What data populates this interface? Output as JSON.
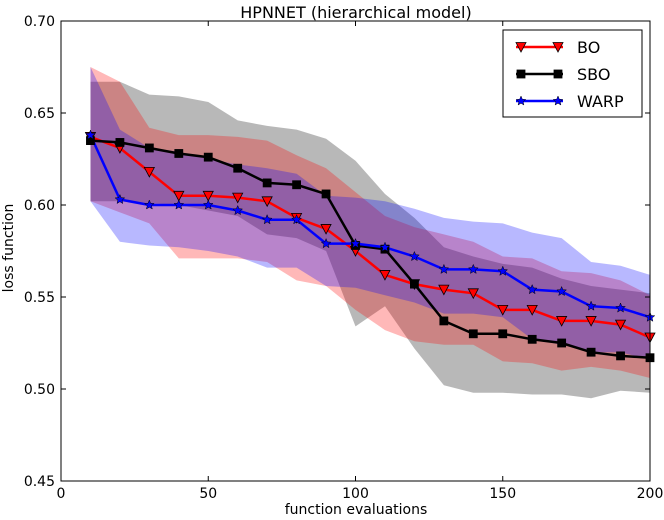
{
  "chart_data": {
    "type": "line",
    "title": "HPNNET (hierarchical model)",
    "xlabel": "function evaluations",
    "ylabel": "loss function",
    "xlim": [
      0,
      200
    ],
    "ylim": [
      0.45,
      0.7
    ],
    "xticks": [
      0,
      50,
      100,
      150,
      200
    ],
    "yticks": [
      0.45,
      0.5,
      0.55,
      0.6,
      0.65,
      0.7
    ],
    "xtick_labels": [
      "0",
      "50",
      "100",
      "150",
      "200"
    ],
    "ytick_labels": [
      "0.45",
      "0.50",
      "0.55",
      "0.60",
      "0.65",
      "0.70"
    ],
    "grid": false,
    "legend_position": "top-right",
    "x": [
      10,
      20,
      30,
      40,
      50,
      60,
      70,
      80,
      90,
      100,
      110,
      120,
      130,
      140,
      150,
      160,
      170,
      180,
      190,
      200
    ],
    "series": [
      {
        "name": "BO",
        "color": "#ff0000",
        "marker": "triangle-down",
        "values": [
          0.637,
          0.631,
          0.618,
          0.605,
          0.605,
          0.604,
          0.602,
          0.593,
          0.587,
          0.575,
          0.562,
          0.557,
          0.554,
          0.552,
          0.543,
          0.543,
          0.537,
          0.537,
          0.535,
          0.528
        ],
        "upper": [
          0.675,
          0.667,
          0.642,
          0.638,
          0.638,
          0.637,
          0.635,
          0.627,
          0.62,
          0.607,
          0.594,
          0.588,
          0.584,
          0.58,
          0.572,
          0.571,
          0.564,
          0.563,
          0.559,
          0.551
        ],
        "lower": [
          0.602,
          0.596,
          0.59,
          0.571,
          0.571,
          0.571,
          0.569,
          0.559,
          0.556,
          0.543,
          0.532,
          0.526,
          0.524,
          0.524,
          0.515,
          0.514,
          0.51,
          0.512,
          0.51,
          0.506
        ]
      },
      {
        "name": "SBO",
        "color": "#000000",
        "marker": "square",
        "values": [
          0.635,
          0.634,
          0.631,
          0.628,
          0.626,
          0.62,
          0.612,
          0.611,
          0.606,
          0.578,
          0.576,
          0.557,
          0.537,
          0.53,
          0.53,
          0.527,
          0.525,
          0.52,
          0.518,
          0.517
        ],
        "upper": [
          0.667,
          0.667,
          0.66,
          0.659,
          0.656,
          0.646,
          0.643,
          0.641,
          0.636,
          0.624,
          0.606,
          0.593,
          0.577,
          0.572,
          0.568,
          0.566,
          0.56,
          0.556,
          0.554,
          0.552
        ],
        "lower": [
          0.602,
          0.602,
          0.601,
          0.6,
          0.597,
          0.594,
          0.584,
          0.582,
          0.575,
          0.534,
          0.545,
          0.522,
          0.502,
          0.498,
          0.498,
          0.497,
          0.497,
          0.495,
          0.499,
          0.498
        ]
      },
      {
        "name": "WARP",
        "color": "#0000ff",
        "marker": "star",
        "values": [
          0.638,
          0.603,
          0.6,
          0.6,
          0.6,
          0.597,
          0.592,
          0.592,
          0.579,
          0.579,
          0.577,
          0.572,
          0.565,
          0.565,
          0.564,
          0.554,
          0.553,
          0.545,
          0.544,
          0.539
        ],
        "upper": [
          0.675,
          0.641,
          0.631,
          0.629,
          0.625,
          0.622,
          0.62,
          0.617,
          0.605,
          0.604,
          0.602,
          0.598,
          0.593,
          0.591,
          0.59,
          0.585,
          0.582,
          0.569,
          0.567,
          0.562
        ],
        "lower": [
          0.602,
          0.58,
          0.578,
          0.577,
          0.575,
          0.572,
          0.566,
          0.566,
          0.556,
          0.555,
          0.551,
          0.547,
          0.541,
          0.541,
          0.539,
          0.527,
          0.524,
          0.52,
          0.52,
          0.516
        ]
      }
    ]
  }
}
